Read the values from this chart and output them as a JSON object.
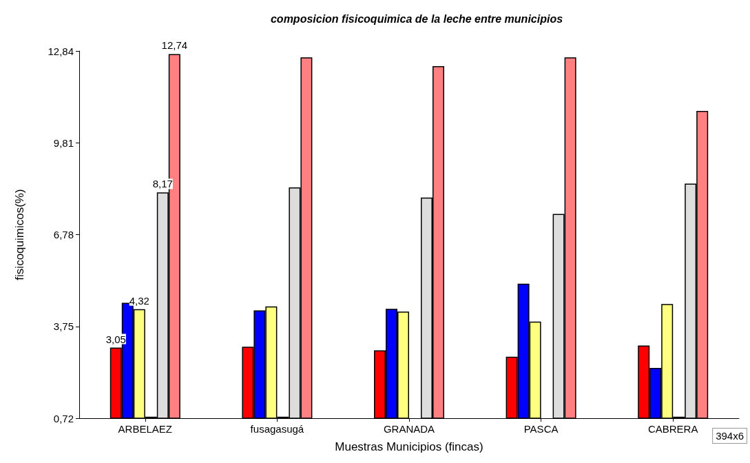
{
  "chart_data": {
    "type": "bar",
    "title": "composicion fisicoquimica de la leche entre municipios",
    "xlabel": "Muestras Municipios (fincas)",
    "ylabel": "fisicoquimicos(%)",
    "categories": [
      "ARBELAEZ",
      "fusagasugá",
      "GRANADA",
      "PASCA",
      "CABRERA"
    ],
    "series": [
      {
        "color": "#ff0000",
        "values": [
          3.05,
          3.08,
          2.96,
          2.75,
          3.12
        ],
        "value_labels": [
          "3,05",
          null,
          null,
          null,
          null
        ]
      },
      {
        "color": "#0000ff",
        "values": [
          4.53,
          4.28,
          4.33,
          5.16,
          2.38
        ]
      },
      {
        "color": "#ffff80",
        "values": [
          4.32,
          4.41,
          4.24,
          3.91,
          4.49
        ],
        "value_labels": [
          "4,32",
          null,
          null,
          null,
          null
        ]
      },
      {
        "color": "#80ff80",
        "values": [
          0.77,
          0.77,
          0.73,
          null,
          0.77
        ]
      },
      {
        "color": "#dddddd",
        "values": [
          8.17,
          8.34,
          8.0,
          7.46,
          8.46
        ],
        "value_labels": [
          "8,17",
          null,
          null,
          null,
          null
        ]
      },
      {
        "color": "#ff8080",
        "values": [
          12.74,
          12.63,
          12.34,
          12.63,
          10.86
        ],
        "value_labels": [
          "12,74",
          null,
          null,
          null,
          null
        ]
      }
    ],
    "ylim": [
      0.72,
      12.84
    ],
    "yticks": [
      {
        "value": 0.72,
        "label": "0,72"
      },
      {
        "value": 3.75,
        "label": "3,75"
      },
      {
        "value": 6.78,
        "label": "6,78"
      },
      {
        "value": 9.81,
        "label": "9,81"
      },
      {
        "value": 12.84,
        "label": "12,84"
      }
    ],
    "grid": false,
    "annotations": [
      "394x6"
    ]
  }
}
